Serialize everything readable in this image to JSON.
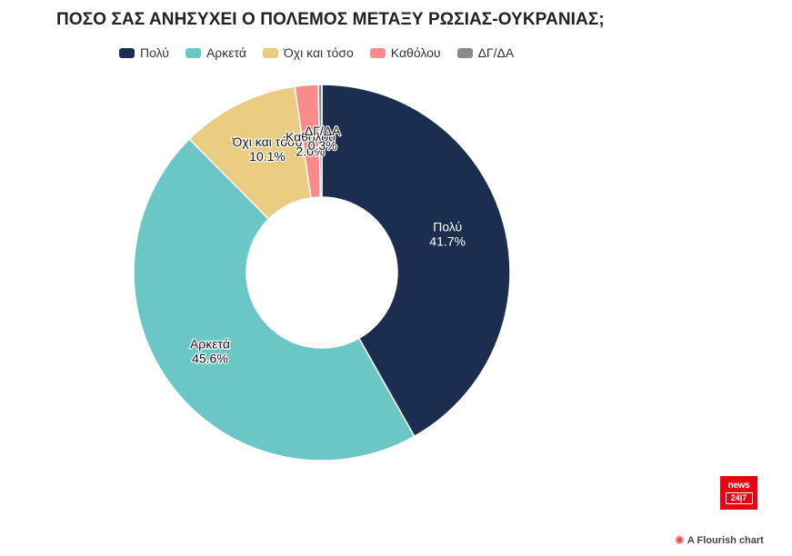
{
  "title": "ΠΟΣΟ ΣΑΣ ΑΝΗΣΥΧΕΙ Ο ΠΟΛΕΜΟΣ ΜΕΤΑΞΥ ΡΩΣΙΑΣ-ΟΥΚΡΑΝΙΑΣ;",
  "legend": [
    {
      "label": "Πολύ",
      "color": "#1b2e4f"
    },
    {
      "label": "Αρκετά",
      "color": "#6bc7c5"
    },
    {
      "label": "Όχι και τόσο",
      "color": "#e9cc80"
    },
    {
      "label": "Καθόλου",
      "color": "#fa8b8b"
    },
    {
      "label": "ΔΓ/ΔΑ",
      "color": "#8a8a8a"
    }
  ],
  "chart_data": {
    "type": "pie",
    "title": "ΠΟΣΟ ΣΑΣ ΑΝΗΣΥΧΕΙ Ο ΠΟΛΕΜΟΣ ΜΕΤΑΞΥ ΡΩΣΙΑΣ-ΟΥΚΡΑΝΙΑΣ;",
    "donut": true,
    "legend_position": "top-left",
    "categories": [
      "Πολύ",
      "Αρκετά",
      "Όχι και τόσο",
      "Καθόλου",
      "ΔΓ/ΔΑ"
    ],
    "values": [
      41.7,
      45.6,
      10.1,
      2.0,
      0.3
    ],
    "value_labels": [
      "41.7%",
      "45.6%",
      "10.1%",
      "2.0%",
      "0.3%"
    ],
    "colors": [
      "#1b2e4f",
      "#6bc7c5",
      "#e9cc80",
      "#fa8b8b",
      "#8a8a8a"
    ]
  },
  "logo": {
    "top": "news",
    "bottom": "24|7"
  },
  "footer": {
    "credit": "A Flourish chart"
  }
}
